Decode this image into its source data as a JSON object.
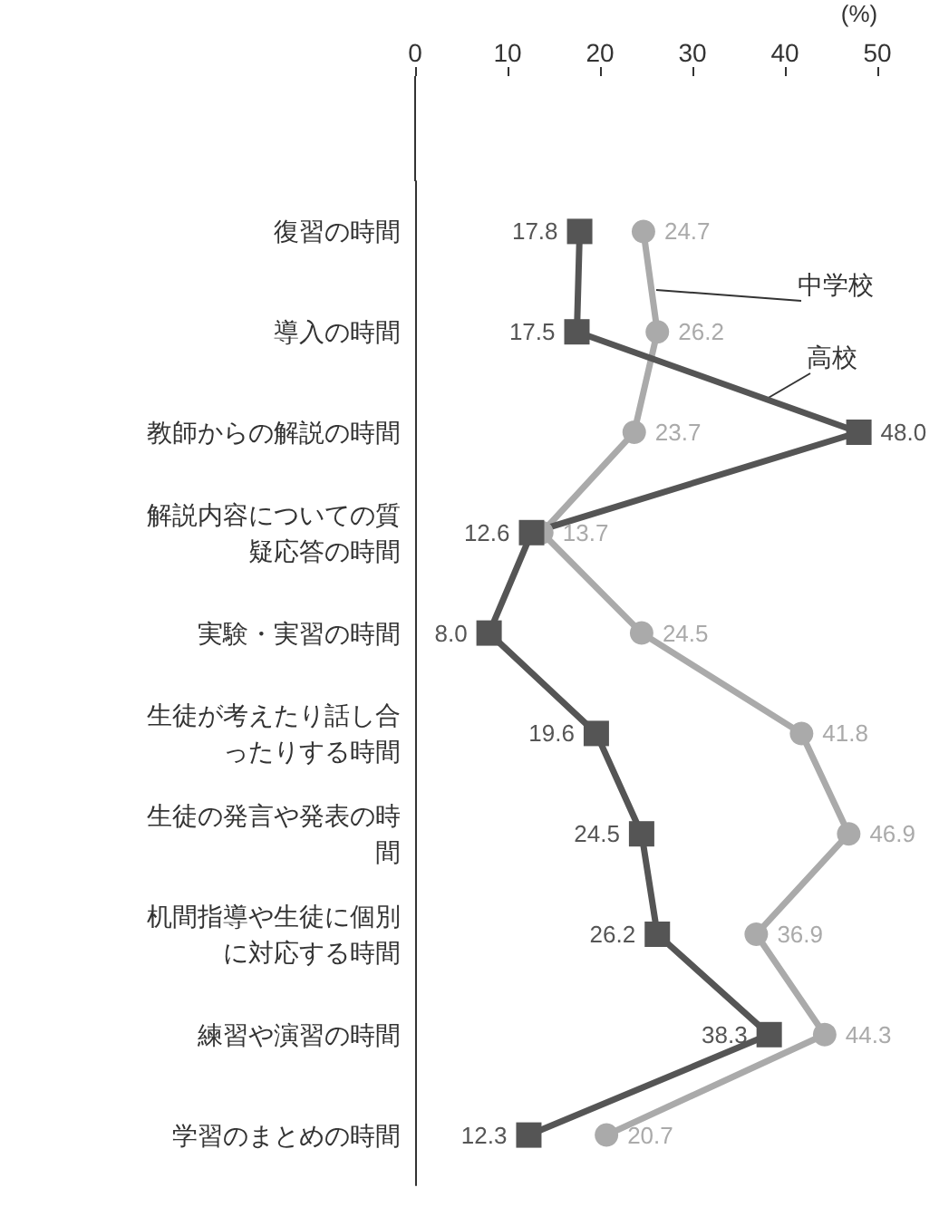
{
  "chart_data": {
    "type": "line",
    "orientation": "horizontal",
    "xlabel": "(%)",
    "categories": [
      "復習の時間",
      "導入の時間",
      "教師からの解説の時間",
      "解説内容についての質疑応答の時間",
      "実験・実習の時間",
      "生徒が考えたり話し合ったりする時間",
      "生徒の発言や発表の時間",
      "机間指導や生徒に個別に対応する時間",
      "練習や演習の時間",
      "学習のまとめの時間"
    ],
    "xlim": [
      0,
      50
    ],
    "xticks": [
      0,
      10,
      20,
      30,
      40,
      50
    ],
    "grid": false,
    "legend": false,
    "line_style": "solid",
    "series": [
      {
        "name": "中学校",
        "color": "#aaaaaa",
        "marker": "circle",
        "values": [
          24.7,
          26.2,
          23.7,
          13.7,
          24.5,
          41.8,
          46.9,
          36.9,
          44.3,
          20.7
        ],
        "value_labels": [
          "24.7",
          "26.2",
          "23.7",
          "13.7",
          "24.5",
          "41.8",
          "46.9",
          "36.9",
          "44.3",
          "20.7"
        ]
      },
      {
        "name": "高校",
        "color": "#555555",
        "marker": "square",
        "values": [
          17.8,
          17.5,
          48.0,
          12.6,
          8.0,
          19.6,
          24.5,
          26.2,
          38.3,
          12.3
        ],
        "value_labels": [
          "17.8",
          "17.5",
          "48.0",
          "12.6",
          "8.0",
          "19.6",
          "24.5",
          "26.2",
          "38.3",
          "12.3"
        ]
      }
    ]
  }
}
